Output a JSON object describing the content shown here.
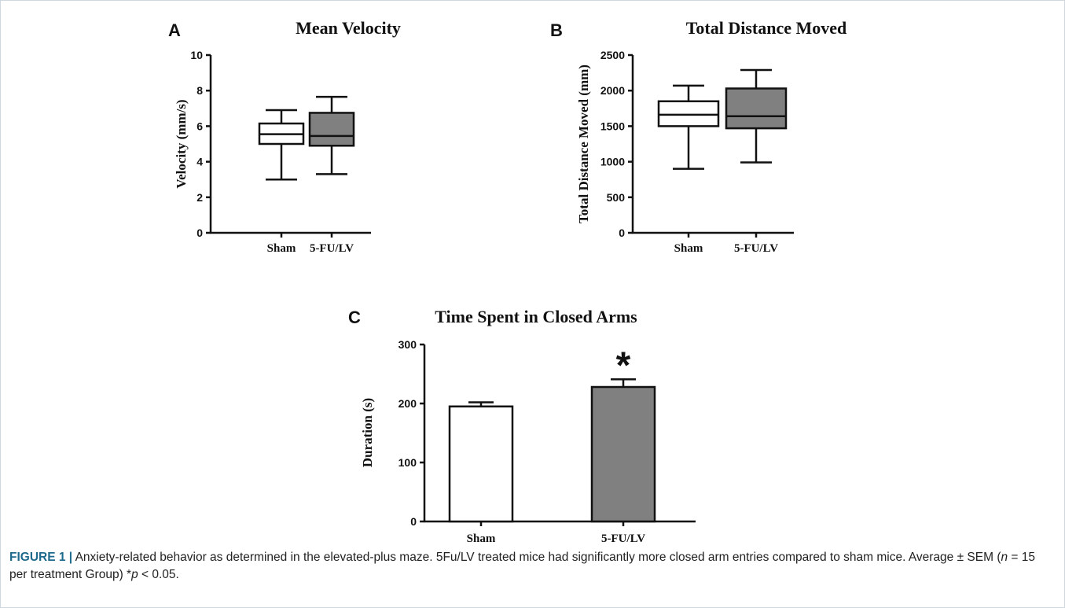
{
  "chart_data": [
    {
      "panel": "A",
      "type": "box",
      "title": "Mean Velocity",
      "ylabel": "Velocity (mm/s)",
      "xlabel": "",
      "ylim": [
        0,
        10
      ],
      "yticks": [
        "0",
        "2",
        "4",
        "6",
        "8",
        "10"
      ],
      "categories": [
        "Sham",
        "5-FU/LV"
      ],
      "boxes": [
        {
          "category": "Sham",
          "min": 3.0,
          "q1": 5.0,
          "median": 5.55,
          "q3": 6.15,
          "max": 6.9,
          "color": "#ffffff"
        },
        {
          "category": "5-FU/LV",
          "min": 3.3,
          "q1": 4.9,
          "median": 5.45,
          "q3": 6.75,
          "max": 7.65,
          "color": "#808080"
        }
      ],
      "grid": false
    },
    {
      "panel": "B",
      "type": "box",
      "title": "Total Distance Moved",
      "ylabel": "Total Distance Moved (mm)",
      "xlabel": "",
      "ylim": [
        0,
        2500
      ],
      "yticks": [
        "0",
        "500",
        "1000",
        "1500",
        "2000",
        "2500"
      ],
      "categories": [
        "Sham",
        "5-FU/LV"
      ],
      "boxes": [
        {
          "category": "Sham",
          "min": 900,
          "q1": 1500,
          "median": 1660,
          "q3": 1850,
          "max": 2070,
          "color": "#ffffff"
        },
        {
          "category": "5-FU/LV",
          "min": 990,
          "q1": 1470,
          "median": 1640,
          "q3": 2030,
          "max": 2290,
          "color": "#808080"
        }
      ],
      "grid": false
    },
    {
      "panel": "C",
      "type": "bar",
      "title": "Time Spent in Closed Arms",
      "ylabel": "Duration (s)",
      "xlabel": "",
      "ylim": [
        0,
        300
      ],
      "yticks": [
        "0",
        "100",
        "200",
        "300"
      ],
      "categories": [
        "Sham",
        "5-FU/LV"
      ],
      "values": [
        195,
        228
      ],
      "errors": [
        7,
        13
      ],
      "colors": [
        "#ffffff",
        "#808080"
      ],
      "annotations": [
        {
          "category": "5-FU/LV",
          "text": "*"
        }
      ],
      "grid": false
    }
  ],
  "caption": {
    "label": "FIGURE 1 |",
    "text_1": " Anxiety-related behavior as determined in the elevated-plus maze. 5Fu/LV treated mice had significantly more closed arm entries compared to sham mice. Average ± SEM (",
    "n_symbol": "n",
    "text_2": " = 15 per treatment Group) *",
    "p_symbol": "p",
    "text_3": " < 0.05."
  }
}
